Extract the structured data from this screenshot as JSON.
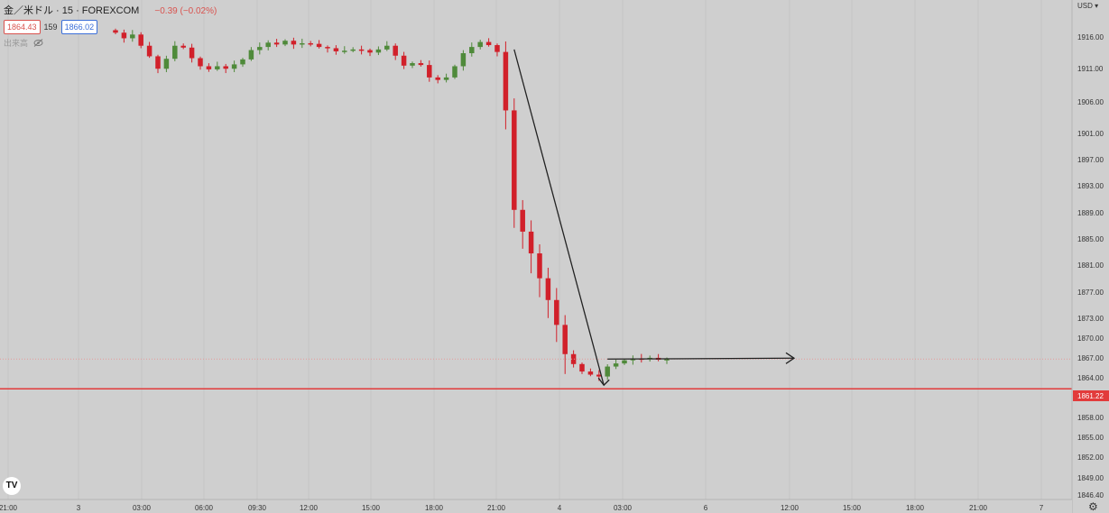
{
  "legend": {
    "symbol": "金／米ドル · 15 · FOREXCOM",
    "change": "−0.39 (−0.02%)",
    "sell_price": "1864.43",
    "spread": "159",
    "buy_price": "1866.02",
    "volume_label": "出来高"
  },
  "currency_label": "USD",
  "last_price_label": "1861.22",
  "logo_text": "TV",
  "settings_icon": "gear-icon",
  "colors": {
    "background": "#cfcfcf",
    "up": "#4f8a3a",
    "down": "#d1202a",
    "price_line": "#e23b3b",
    "annotation": "#222222"
  },
  "chart_data": {
    "type": "candlestick",
    "title": "金／米ドル · 15 · FOREXCOM",
    "ylim": [
      1844,
      1921
    ],
    "y_ticks": [
      "1916.00",
      "1911.00",
      "1906.00",
      "1901.00",
      "1897.00",
      "1893.00",
      "1889.00",
      "1885.00",
      "1881.00",
      "1877.00",
      "1873.00",
      "1870.00",
      "1867.00",
      "1864.00",
      "1861.22",
      "1858.00",
      "1855.00",
      "1852.00",
      "1849.00",
      "1846.40"
    ],
    "x_ticks": [
      "21:00",
      "3",
      "03:00",
      "06:00",
      "09:30",
      "12:00",
      "15:00",
      "18:00",
      "21:00",
      "4",
      "03:00",
      "6",
      "12:00",
      "15:00",
      "18:00",
      "21:00",
      "7"
    ],
    "horizontal_line": 1861.22,
    "dotted_line": 1866.0,
    "closes": [
      1918.5,
      1917.6,
      1918.2,
      1916.4,
      1914.7,
      1912.7,
      1914.3,
      1916.4,
      1916.1,
      1914.4,
      1913.1,
      1912.6,
      1913.1,
      1912.7,
      1913.4,
      1914.2,
      1915.7,
      1916.2,
      1916.9,
      1916.6,
      1917.2,
      1916.6,
      1916.8,
      1916.7,
      1916.2,
      1916.0,
      1915.5,
      1915.6,
      1915.8,
      1915.7,
      1915.3,
      1915.8,
      1916.4,
      1914.8,
      1913.2,
      1913.6,
      1913.3,
      1911.3,
      1910.9,
      1911.3,
      1913.1,
      1915.2,
      1916.2,
      1917.0,
      1916.5,
      1915.4,
      1906.0,
      1890.0,
      1886.5,
      1883.0,
      1879.0,
      1875.5,
      1871.5,
      1866.8,
      1865.2,
      1864.0,
      1863.5,
      1863.2,
      1864.8,
      1865.3,
      1865.8,
      1866.1,
      1866.0,
      1866.2,
      1865.9,
      1866.0
    ]
  }
}
